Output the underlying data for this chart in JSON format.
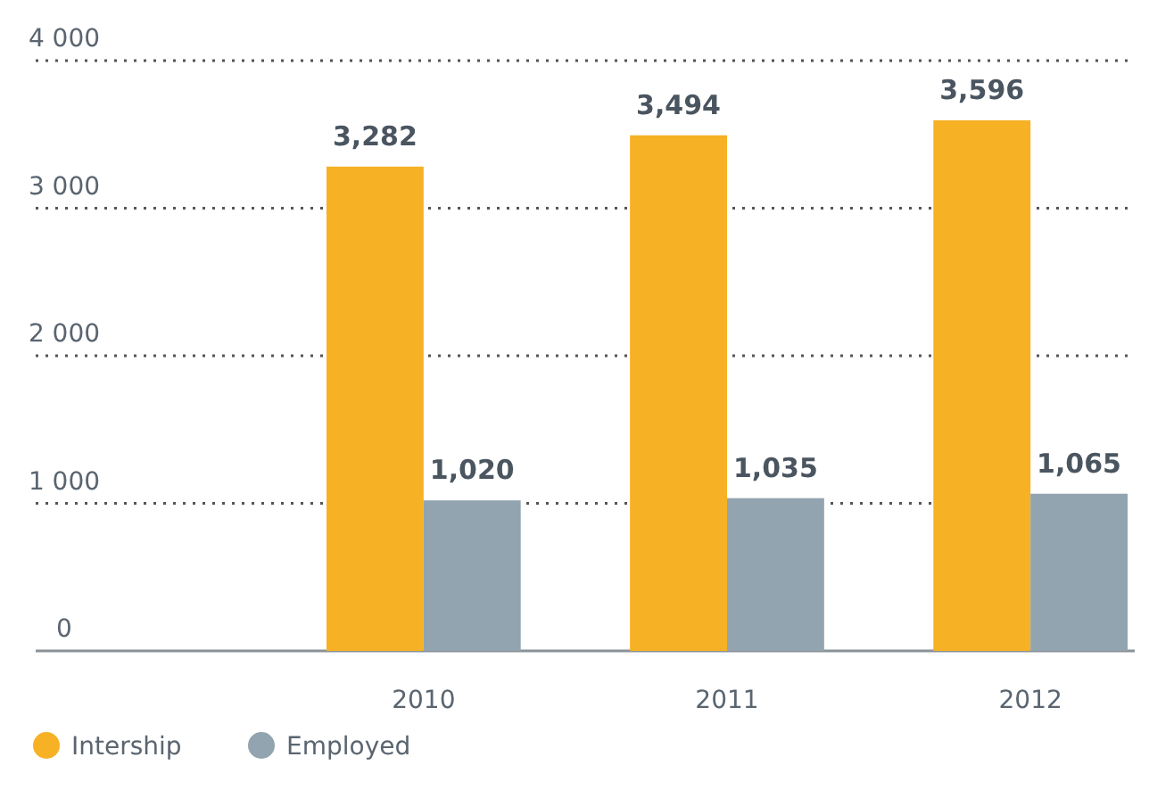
{
  "chart_data": {
    "type": "bar",
    "categories": [
      "2010",
      "2011",
      "2012"
    ],
    "series": [
      {
        "name": "Intership",
        "color": "#f7b125",
        "values": [
          3282,
          3494,
          3596
        ],
        "value_labels": [
          "3,282",
          "3,494",
          "3,596"
        ]
      },
      {
        "name": "Employed",
        "color": "#91a4af",
        "values": [
          1020,
          1035,
          1065
        ],
        "value_labels": [
          "1,020",
          "1,035",
          "1,065"
        ]
      }
    ],
    "ylim": [
      0,
      4000
    ],
    "yticks": [
      0,
      {
        "value": 1000,
        "label": "1 000"
      },
      {
        "value": 2000,
        "label": "2 000"
      },
      {
        "value": 3000,
        "label": "3 000"
      },
      {
        "value": 4000,
        "label": "4 000"
      }
    ],
    "grid": "y",
    "legend": "bottom"
  }
}
